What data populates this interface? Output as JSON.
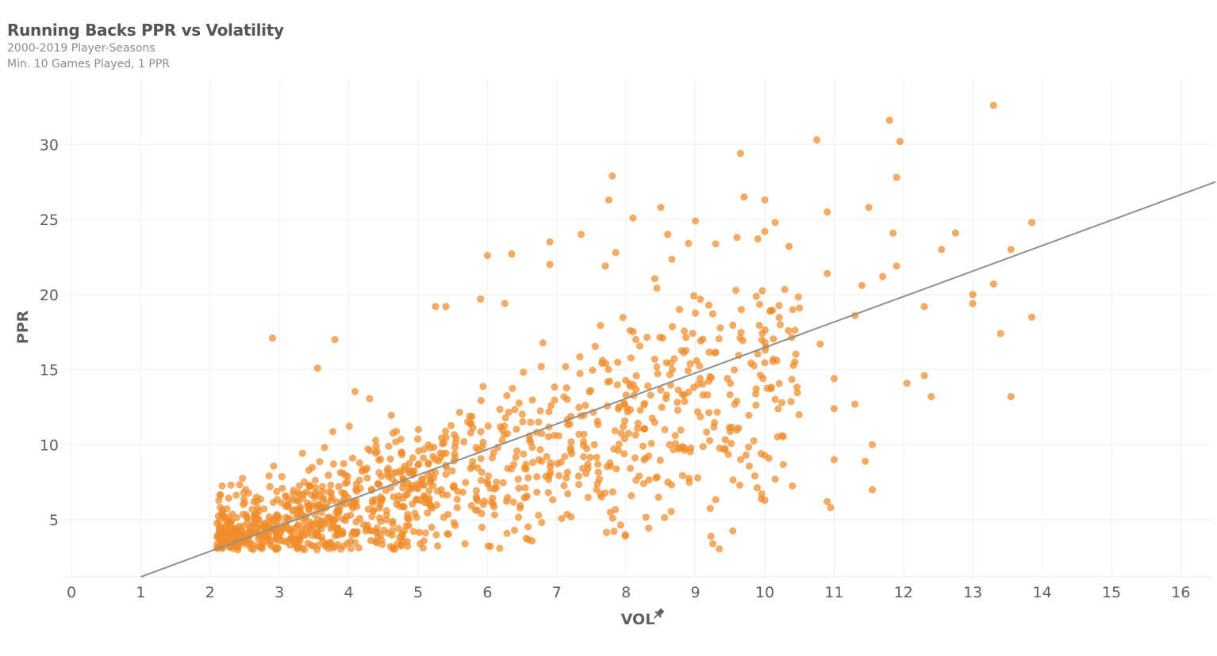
{
  "colors": {
    "point": "#f08c2a",
    "trend": "#8f8f8f",
    "grid": "#eeeeee",
    "text": "#606060"
  },
  "chart_data": {
    "type": "scatter",
    "title": "Running Backs PPR vs Volatility",
    "subtitle_lines": [
      "2000-2019 Player-Seasons",
      "Min. 10 Games Played, 1 PPR"
    ],
    "xlabel": "VOL",
    "xlabel_icon": "pin-icon",
    "ylabel": "PPR",
    "xlim": [
      0,
      16.5
    ],
    "ylim": [
      1.2,
      33.5
    ],
    "x_ticks": [
      0,
      1,
      2,
      3,
      4,
      5,
      6,
      7,
      8,
      9,
      10,
      11,
      12,
      13,
      14,
      15,
      16
    ],
    "y_ticks": [
      5,
      10,
      15,
      20,
      25,
      30
    ],
    "grid": true,
    "legend": "none",
    "trendline": {
      "x": [
        1.0,
        16.5
      ],
      "y": [
        1.2,
        27.5
      ]
    },
    "highlight_points": [
      {
        "x": 13.3,
        "y": 32.6
      },
      {
        "x": 11.8,
        "y": 31.6
      },
      {
        "x": 10.75,
        "y": 30.3
      },
      {
        "x": 11.95,
        "y": 30.2
      },
      {
        "x": 9.65,
        "y": 29.4
      },
      {
        "x": 7.8,
        "y": 27.9
      },
      {
        "x": 11.9,
        "y": 27.8
      },
      {
        "x": 9.7,
        "y": 26.5
      },
      {
        "x": 10.0,
        "y": 26.3
      },
      {
        "x": 7.75,
        "y": 26.3
      },
      {
        "x": 8.5,
        "y": 25.8
      },
      {
        "x": 11.5,
        "y": 25.8
      },
      {
        "x": 10.9,
        "y": 25.5
      },
      {
        "x": 8.1,
        "y": 25.1
      },
      {
        "x": 10.15,
        "y": 24.8
      },
      {
        "x": 13.85,
        "y": 24.8
      },
      {
        "x": 9.0,
        "y": 24.9
      },
      {
        "x": 12.75,
        "y": 24.1
      },
      {
        "x": 7.35,
        "y": 24.0
      },
      {
        "x": 11.85,
        "y": 24.1
      },
      {
        "x": 8.6,
        "y": 24.0
      },
      {
        "x": 6.9,
        "y": 23.5
      },
      {
        "x": 8.9,
        "y": 23.4
      },
      {
        "x": 12.55,
        "y": 23.0
      },
      {
        "x": 13.55,
        "y": 23.0
      },
      {
        "x": 10.35,
        "y": 23.2
      },
      {
        "x": 6.0,
        "y": 22.6
      },
      {
        "x": 6.35,
        "y": 22.7
      },
      {
        "x": 7.85,
        "y": 22.8
      },
      {
        "x": 11.4,
        "y": 20.6
      },
      {
        "x": 11.7,
        "y": 21.2
      },
      {
        "x": 11.9,
        "y": 21.9
      },
      {
        "x": 10.9,
        "y": 21.4
      },
      {
        "x": 13.0,
        "y": 20.0
      },
      {
        "x": 13.3,
        "y": 20.7
      },
      {
        "x": 13.0,
        "y": 19.4
      },
      {
        "x": 12.3,
        "y": 19.2
      },
      {
        "x": 11.3,
        "y": 18.6
      },
      {
        "x": 13.85,
        "y": 18.5
      },
      {
        "x": 13.4,
        "y": 17.4
      },
      {
        "x": 10.8,
        "y": 16.7
      },
      {
        "x": 11.0,
        "y": 14.4
      },
      {
        "x": 12.3,
        "y": 14.6
      },
      {
        "x": 12.05,
        "y": 14.1
      },
      {
        "x": 12.4,
        "y": 13.2
      },
      {
        "x": 13.55,
        "y": 13.2
      },
      {
        "x": 11.3,
        "y": 12.7
      },
      {
        "x": 11.0,
        "y": 12.4
      },
      {
        "x": 11.55,
        "y": 10.0
      },
      {
        "x": 11.0,
        "y": 9.0
      },
      {
        "x": 11.45,
        "y": 8.9
      },
      {
        "x": 11.55,
        "y": 7.0
      },
      {
        "x": 10.9,
        "y": 6.2
      },
      {
        "x": 10.95,
        "y": 5.8
      },
      {
        "x": 10.15,
        "y": 7.7
      },
      {
        "x": 9.95,
        "y": 6.4
      },
      {
        "x": 10.0,
        "y": 6.3
      },
      {
        "x": 9.25,
        "y": 3.4
      },
      {
        "x": 2.9,
        "y": 17.1
      },
      {
        "x": 3.8,
        "y": 17.0
      },
      {
        "x": 3.55,
        "y": 15.1
      },
      {
        "x": 5.25,
        "y": 19.2
      },
      {
        "x": 5.4,
        "y": 19.2
      },
      {
        "x": 5.9,
        "y": 19.7
      },
      {
        "x": 6.25,
        "y": 19.4
      },
      {
        "x": 9.6,
        "y": 23.8
      },
      {
        "x": 9.9,
        "y": 23.7
      },
      {
        "x": 10.0,
        "y": 24.2
      },
      {
        "x": 7.7,
        "y": 21.9
      },
      {
        "x": 10.5,
        "y": 19.1
      },
      {
        "x": 6.9,
        "y": 22.0
      }
    ],
    "cloud_params": {
      "count": 1150,
      "seed": 20190101
    }
  }
}
